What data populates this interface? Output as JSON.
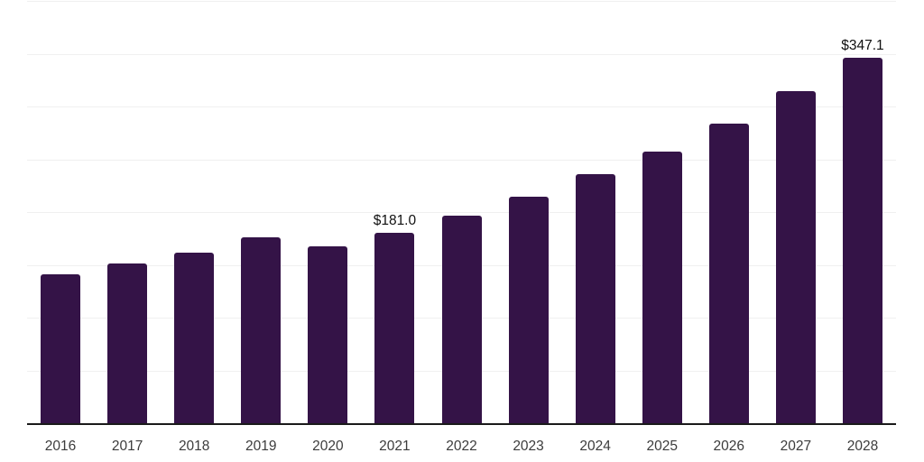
{
  "chart_data": {
    "type": "bar",
    "title": "",
    "xlabel": "",
    "ylabel": "",
    "categories": [
      "2016",
      "2017",
      "2018",
      "2019",
      "2020",
      "2021",
      "2022",
      "2023",
      "2024",
      "2025",
      "2026",
      "2027",
      "2028"
    ],
    "values": [
      141.5,
      152.0,
      162.7,
      177.0,
      168.4,
      181.0,
      197.7,
      215.6,
      236.5,
      258.3,
      284.9,
      315.2,
      347.1
    ],
    "point_labels": [
      "",
      "",
      "",
      "",
      "",
      "$181.0",
      "",
      "",
      "",
      "",
      "",
      "",
      "$347.1"
    ],
    "ylim": [
      0,
      400
    ],
    "grid_step": 50,
    "grid": true,
    "legend": false,
    "bar_color": "#341347",
    "gridline_color": "#f0f0f0",
    "axis_line_color": "#1a1a1a",
    "tick_label_color": "#3c3c3c",
    "data_label_color": "#111111"
  }
}
